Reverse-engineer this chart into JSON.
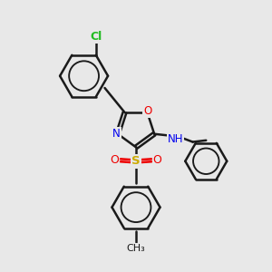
{
  "bg_color": "#e8e8e8",
  "bond_color": "#1a1a1a",
  "bond_width": 1.8,
  "N_color": "#0000ee",
  "O_color": "#ee0000",
  "S_color": "#ccaa00",
  "Cl_color": "#22bb22",
  "figsize": [
    3.0,
    3.0
  ],
  "dpi": 100,
  "xlim": [
    0,
    10
  ],
  "ylim": [
    0,
    10
  ]
}
